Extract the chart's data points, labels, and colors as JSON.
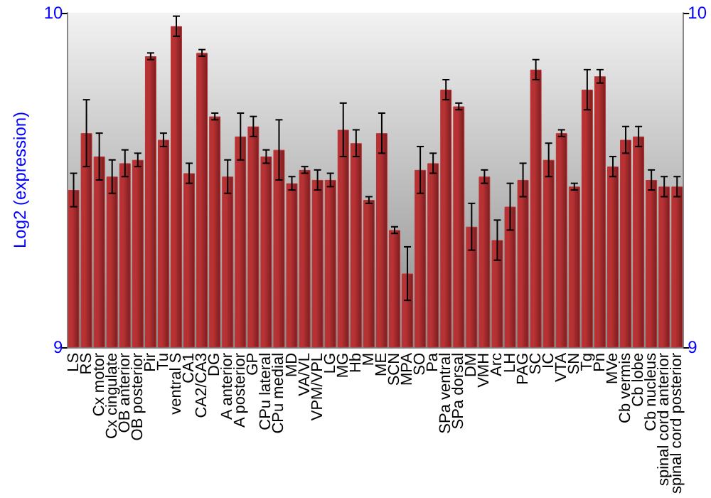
{
  "chart_data": {
    "type": "bar",
    "ylabel": "Log2 (expression)",
    "categories": [
      "LS",
      "RS",
      "Cx motor",
      "Cx cingulate",
      "OB anterior",
      "OB posterior",
      "Pir",
      "Tu",
      "ventral S",
      "CA1",
      "CA2/CA3",
      "DG",
      "A anterior",
      "A posterior",
      "GP",
      "CPu lateral",
      "CPu medial",
      "MD",
      "VA/VL",
      "VPM/VPL",
      "LG",
      "MG",
      "Hb",
      "M",
      "ME",
      "SCN",
      "MPA",
      "SO",
      "Pa",
      "SPa ventral",
      "SPa dorsal",
      "DM",
      "VMH",
      "Arc",
      "LH",
      "PAG",
      "SC",
      "IC",
      "VTA",
      "SN",
      "Tg",
      "Pn",
      "MVe",
      "Cb vermis",
      "Cb lobe",
      "Cb nucleus",
      "spinal cord anterior",
      "spinal cord posterior"
    ],
    "values": [
      9.47,
      9.64,
      9.57,
      9.51,
      9.55,
      9.56,
      9.87,
      9.62,
      9.96,
      9.52,
      9.88,
      9.69,
      9.51,
      9.63,
      9.66,
      9.57,
      9.59,
      9.49,
      9.53,
      9.5,
      9.5,
      9.65,
      9.61,
      9.44,
      9.64,
      9.35,
      9.22,
      9.53,
      9.55,
      9.77,
      9.72,
      9.36,
      9.51,
      9.32,
      9.42,
      9.5,
      9.83,
      9.56,
      9.64,
      9.48,
      9.77,
      9.81,
      9.54,
      9.62,
      9.63,
      9.5,
      9.48,
      9.48
    ],
    "errors": [
      0.05,
      0.1,
      0.07,
      0.05,
      0.04,
      0.02,
      0.01,
      0.02,
      0.03,
      0.03,
      0.01,
      0.01,
      0.05,
      0.07,
      0.03,
      0.02,
      0.09,
      0.02,
      0.01,
      0.03,
      0.02,
      0.08,
      0.04,
      0.01,
      0.06,
      0.01,
      0.08,
      0.07,
      0.03,
      0.03,
      0.01,
      0.07,
      0.02,
      0.06,
      0.07,
      0.05,
      0.03,
      0.05,
      0.01,
      0.01,
      0.06,
      0.02,
      0.03,
      0.04,
      0.03,
      0.03,
      0.03,
      0.03
    ],
    "color": "#b83234",
    "ylim": [
      9,
      10
    ],
    "yticks": [
      9,
      10
    ],
    "y2lim": [
      9,
      10
    ],
    "y2ticks": [
      9,
      10
    ],
    "grid": false
  }
}
